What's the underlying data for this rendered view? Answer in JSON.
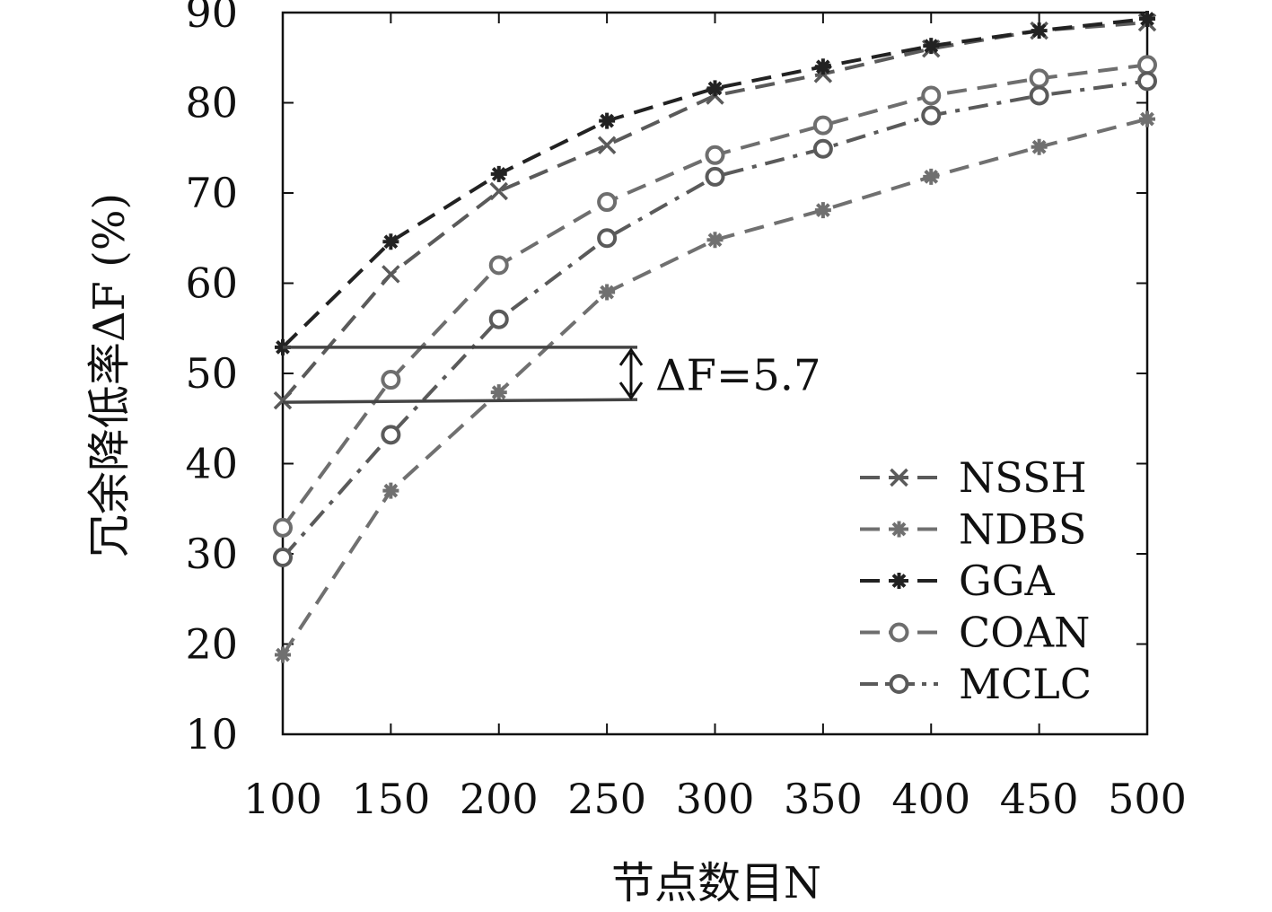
{
  "chart_data": {
    "type": "line",
    "xlabel": "节点数目N",
    "ylabel": "冗余降低率ΔF (%)",
    "x": [
      100,
      150,
      200,
      250,
      300,
      350,
      400,
      450,
      500
    ],
    "xlim": [
      100,
      500
    ],
    "ylim": [
      10,
      90
    ],
    "xticks": [
      "100",
      "150",
      "200",
      "250",
      "300",
      "350",
      "400",
      "450",
      "500"
    ],
    "yticks": [
      "10",
      "20",
      "30",
      "40",
      "50",
      "60",
      "70",
      "80",
      "90"
    ],
    "grid": false,
    "legend_position": "bottom-right",
    "series": [
      {
        "name": "NSSH",
        "marker": "x",
        "color": "#5a5a5a",
        "dash": "dashed",
        "values": [
          47.0,
          61.0,
          70.2,
          75.3,
          80.8,
          83.2,
          86.0,
          88.0,
          88.9
        ]
      },
      {
        "name": "NDBS",
        "marker": "asterisk",
        "color": "#707070",
        "dash": "dashed",
        "values": [
          18.8,
          37.0,
          47.9,
          59.0,
          64.8,
          68.1,
          71.8,
          75.1,
          78.2
        ]
      },
      {
        "name": "GGA",
        "marker": "asterisk",
        "color": "#222222",
        "dash": "dashed",
        "values": [
          52.9,
          64.6,
          72.1,
          78.0,
          81.6,
          84.0,
          86.3,
          88.0,
          89.3
        ]
      },
      {
        "name": "COAN",
        "marker": "circle",
        "color": "#6e6e6e",
        "dash": "dashed",
        "values": [
          32.9,
          49.3,
          62.0,
          69.0,
          74.2,
          77.5,
          80.8,
          82.7,
          84.2
        ]
      },
      {
        "name": "MCLC",
        "marker": "circle",
        "color": "#5a5a5a",
        "dash": "dashdot",
        "values": [
          29.6,
          43.2,
          56.0,
          65.0,
          71.8,
          74.9,
          78.6,
          80.8,
          82.4
        ]
      }
    ],
    "annotation": {
      "text": "ΔF=5.7",
      "value": 5.7,
      "upper_y": 52.9,
      "lower_y": 47.0
    }
  }
}
